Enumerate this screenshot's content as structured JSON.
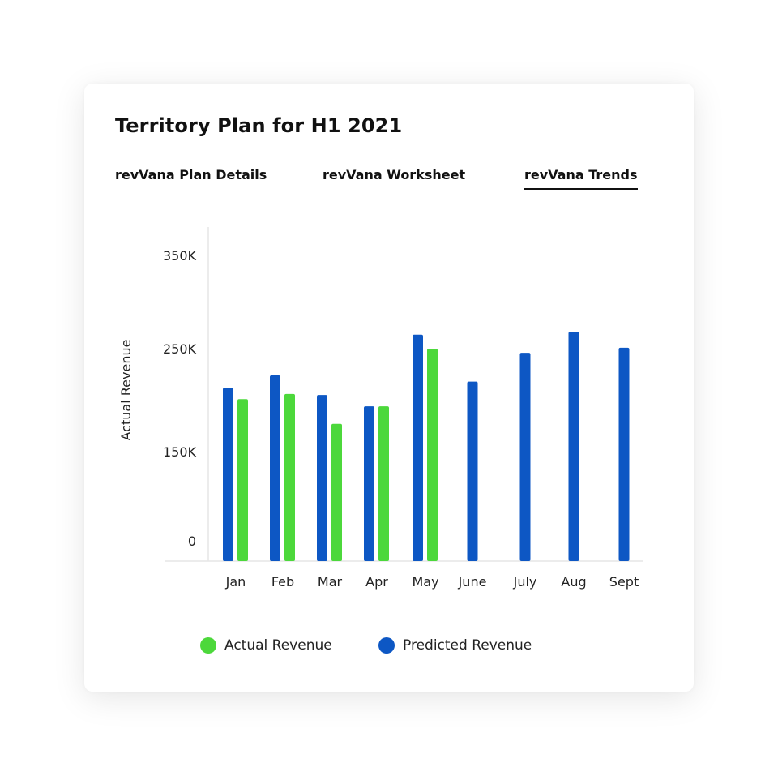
{
  "header": {
    "title": "Territory Plan for H1 2021"
  },
  "tabs": [
    {
      "label": "revVana Plan Details",
      "active": false
    },
    {
      "label": "revVana Worksheet",
      "active": false
    },
    {
      "label": "revVana Trends",
      "active": true
    }
  ],
  "colors": {
    "actual": "#4cd83b",
    "predicted": "#0d57c4"
  },
  "chart_data": {
    "type": "bar",
    "ylabel": "Actual Revenue",
    "categories": [
      "Jan",
      "Feb",
      "Mar",
      "Apr",
      "May",
      "June",
      "July",
      "Aug",
      "Sept"
    ],
    "y_ticks": [
      {
        "label": "0",
        "value": 0
      },
      {
        "label": "150K",
        "value": 150000
      },
      {
        "label": "250K",
        "value": 250000
      },
      {
        "label": "350K",
        "value": 350000
      }
    ],
    "series": [
      {
        "name": "Predicted Revenue",
        "values": [
          212000,
          224000,
          205000,
          194000,
          265000,
          218000,
          246000,
          268000,
          251000
        ]
      },
      {
        "name": "Actual Revenue",
        "values": [
          201000,
          206000,
          177000,
          194000,
          250000,
          null,
          null,
          null,
          null
        ]
      }
    ],
    "legend": [
      {
        "label": "Actual Revenue"
      },
      {
        "label": "Predicted Revenue"
      }
    ],
    "legend_position": "bottom",
    "grid": false
  }
}
